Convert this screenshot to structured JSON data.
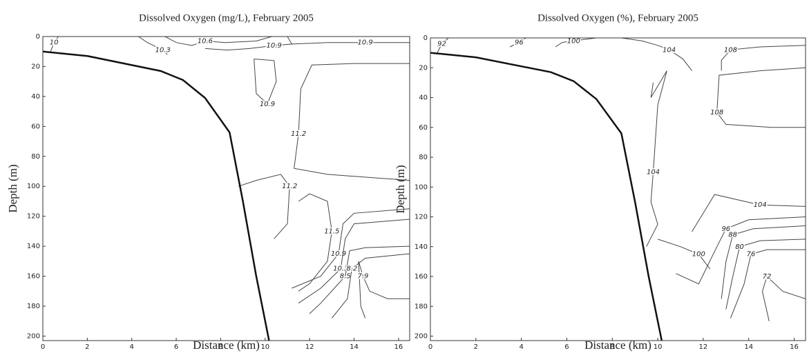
{
  "chart_data": [
    {
      "type": "contour",
      "title": "Dissolved Oxygen (mg/L), February 2005",
      "x_label": "Distance (km)",
      "y_label": "Depth (m)",
      "xlim": [
        0,
        16.5
      ],
      "ylim": [
        0,
        203
      ],
      "y_inverted": true,
      "xticks": [
        0,
        2,
        4,
        6,
        8,
        10,
        12,
        14,
        16
      ],
      "yticks": [
        0,
        20,
        40,
        60,
        80,
        100,
        120,
        140,
        160,
        180,
        200
      ],
      "bathymetry": {
        "x": [
          0,
          2,
          5.3,
          6.3,
          7.3,
          8.4,
          9.0,
          9.6,
          10.2
        ],
        "y": [
          10,
          13,
          23,
          29,
          41,
          64,
          110,
          160,
          205
        ]
      },
      "contours": [
        {
          "label": "10",
          "x": [
            0.35,
            0.5,
            0.7
          ],
          "y": [
            10,
            4,
            0
          ]
        },
        {
          "label": "10.3",
          "x": [
            4.3,
            4.7,
            5.4,
            5.6
          ],
          "y": [
            0,
            4,
            9,
            12
          ]
        },
        {
          "label": "10.6",
          "x": [
            5.5,
            6.0,
            6.7,
            7.3,
            8.2,
            9.6,
            10.3
          ],
          "y": [
            0,
            4,
            6,
            3,
            4,
            3,
            0
          ]
        },
        {
          "label": "10.9",
          "x": [
            7.3,
            8.3,
            9.3,
            10.4,
            11.2,
            11.0
          ],
          "y": [
            8,
            9,
            8,
            6,
            5,
            0
          ]
        },
        {
          "label": "10.9",
          "x": [
            11.2,
            12.8,
            14.5,
            16.5
          ],
          "y": [
            5,
            4,
            4,
            4
          ]
        },
        {
          "label": "10.9",
          "x": [
            9.5,
            10.4,
            10.5,
            10.1,
            9.6,
            9.5
          ],
          "y": [
            15,
            16,
            30,
            45,
            38,
            15
          ]
        },
        {
          "label": "11.2",
          "x": [
            16.5,
            14,
            12.1,
            11.6,
            11.5,
            11.3,
            12.8,
            16.5
          ],
          "y": [
            18,
            18,
            19,
            35,
            65,
            88,
            92,
            96
          ]
        },
        {
          "label": "11.2",
          "x": [
            8.8,
            9.6,
            10.7,
            11.1,
            11.0,
            10.4
          ],
          "y": [
            100,
            96,
            92,
            100,
            125,
            135
          ]
        },
        {
          "label": "11.5",
          "x": [
            11.5,
            12.0,
            12.8,
            13.0,
            12.8,
            12.0,
            11.5
          ],
          "y": [
            110,
            105,
            110,
            130,
            150,
            165,
            170
          ]
        },
        {
          "label": "10.9",
          "x": [
            16.5,
            14,
            13.5,
            13.3,
            12.5,
            11.2
          ],
          "y": [
            115,
            118,
            125,
            145,
            160,
            168
          ]
        },
        {
          "label": "10.3",
          "x": [
            16.5,
            14,
            13.6,
            13.4,
            12.5,
            11.5
          ],
          "y": [
            122,
            125,
            135,
            155,
            168,
            178
          ]
        },
        {
          "label": "8.5",
          "x": [
            16.5,
            14.5,
            13.8,
            13.6,
            12.5,
            12.0
          ],
          "y": [
            140,
            141,
            143,
            160,
            178,
            185
          ]
        },
        {
          "label": "8.2",
          "x": [
            16.5,
            14.5,
            13.9,
            13.7,
            13.0
          ],
          "y": [
            145,
            148,
            155,
            175,
            188
          ]
        },
        {
          "label": "7.9",
          "x": [
            16.5,
            15.5,
            14.7,
            14.4,
            14.2,
            14.3,
            14.5
          ],
          "y": [
            175,
            175,
            170,
            160,
            150,
            180,
            188
          ]
        }
      ]
    },
    {
      "type": "contour",
      "title": "Dissolved Oxygen (%), February 2005",
      "x_label": "Distance (km)",
      "y_label": "Depth (m)",
      "xlim": [
        0,
        16.5
      ],
      "ylim": [
        0,
        203
      ],
      "y_inverted": true,
      "xticks": [
        0,
        2,
        4,
        6,
        8,
        10,
        12,
        14,
        16
      ],
      "yticks": [
        0,
        20,
        40,
        60,
        80,
        100,
        120,
        140,
        160,
        180,
        200
      ],
      "bathymetry": {
        "x": [
          0,
          2,
          5.3,
          6.3,
          7.3,
          8.4,
          9.0,
          9.6,
          10.2
        ],
        "y": [
          10,
          13,
          23,
          29,
          41,
          64,
          110,
          160,
          205
        ]
      },
      "contours": [
        {
          "label": "92",
          "x": [
            0.3,
            0.5,
            0.8
          ],
          "y": [
            10,
            4,
            0
          ]
        },
        {
          "label": "96",
          "x": [
            3.5,
            3.9,
            4.2
          ],
          "y": [
            6,
            3,
            0
          ]
        },
        {
          "label": "100",
          "x": [
            5.5,
            5.8,
            6.3,
            7.3
          ],
          "y": [
            6,
            3,
            2,
            0
          ]
        },
        {
          "label": "104",
          "x": [
            8.4,
            9.3,
            10.0,
            10.5,
            11.1,
            11.5
          ],
          "y": [
            0,
            2,
            5,
            8,
            14,
            22
          ]
        },
        {
          "label": "108",
          "x": [
            16.5,
            14.5,
            13.2,
            12.8,
            12.8
          ],
          "y": [
            5,
            6,
            8,
            15,
            22
          ]
        },
        {
          "label": "108",
          "x": [
            16.5,
            14.5,
            12.7,
            12.6,
            13.0,
            15.0,
            16.5
          ],
          "y": [
            20,
            22,
            25,
            50,
            58,
            60,
            60
          ]
        },
        {
          "label": "104",
          "x": [
            9.8,
            9.7,
            10.4,
            10.0,
            9.8,
            9.7,
            10.0,
            9.5
          ],
          "y": [
            30,
            40,
            22,
            45,
            90,
            110,
            125,
            140
          ]
        },
        {
          "label": "104",
          "x": [
            11.5,
            12.5,
            14.5,
            16.5
          ],
          "y": [
            130,
            105,
            112,
            113
          ]
        },
        {
          "label": "100",
          "x": [
            10.0,
            11.0,
            11.8,
            12.3
          ],
          "y": [
            135,
            140,
            145,
            155
          ]
        },
        {
          "label": "96",
          "x": [
            10.8,
            11.8,
            12.6,
            13.0,
            14.0,
            16.5
          ],
          "y": [
            158,
            165,
            140,
            128,
            122,
            120
          ]
        },
        {
          "label": "88",
          "x": [
            16.5,
            14.2,
            13.3,
            13.0,
            12.8
          ],
          "y": [
            126,
            128,
            132,
            150,
            175
          ]
        },
        {
          "label": "80",
          "x": [
            16.5,
            14.5,
            13.6,
            13.3,
            13.0
          ],
          "y": [
            135,
            136,
            140,
            160,
            182
          ]
        },
        {
          "label": "76",
          "x": [
            16.5,
            14.8,
            14.1,
            13.8,
            13.2
          ],
          "y": [
            142,
            142,
            145,
            165,
            188
          ]
        },
        {
          "label": "72",
          "x": [
            16.5,
            15.5,
            14.8,
            14.6,
            14.9
          ],
          "y": [
            175,
            170,
            160,
            170,
            190
          ]
        }
      ]
    }
  ]
}
